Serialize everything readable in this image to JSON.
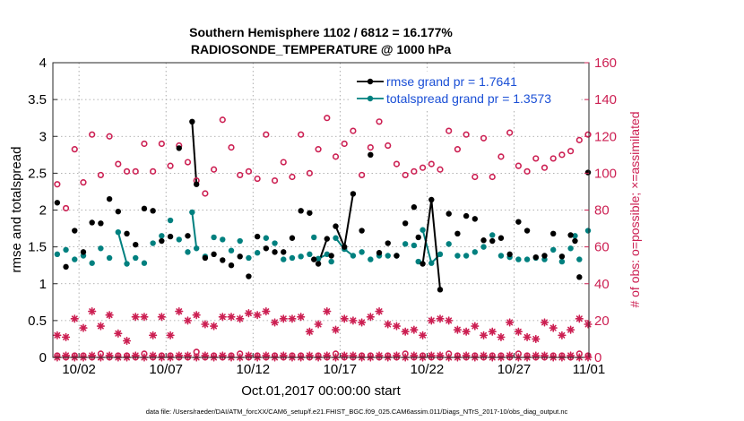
{
  "chart_data": {
    "type": "scatter",
    "title_line1": "Southern Hemisphere 1102 / 6812 = 16.177%",
    "title_line2": "RADIOSONDE_TEMPERATURE @ 1000 hPa",
    "ylabel_left": "rmse and totalspread",
    "ylabel_right": "# of obs: o=possible; ×=assimilated",
    "xlabel": "Oct.01,2017 00:00:00 start",
    "footer": "data file: /Users/raeder/DAI/ATM_forcXX/CAM6_setup/f.e21.FHIST_BGC.f09_025.CAM6assim.011/Diags_NTrS_2017-10/obs_diag_output.nc",
    "xlim": [
      0.5,
      31.3
    ],
    "ylim_left": [
      0,
      4
    ],
    "ylim_right": [
      0,
      160
    ],
    "x_ticks": [
      {
        "x": 2,
        "label": "10/02"
      },
      {
        "x": 7,
        "label": "10/07"
      },
      {
        "x": 12,
        "label": "10/12"
      },
      {
        "x": 17,
        "label": "10/17"
      },
      {
        "x": 22,
        "label": "10/22"
      },
      {
        "x": 27,
        "label": "10/27"
      },
      {
        "x": 32,
        "label": "11/01"
      }
    ],
    "y_ticks_left": [
      "0",
      "0.5",
      "1",
      "1.5",
      "2",
      "2.5",
      "3",
      "3.5",
      "4"
    ],
    "y_ticks_right": [
      "0",
      "20",
      "40",
      "60",
      "80",
      "100",
      "120",
      "140",
      "160"
    ],
    "colors": {
      "rmse": "#000000",
      "totalspread": "#00807f",
      "obs": "#cc1f52",
      "legend_text": "#1a4fd6"
    },
    "legend": [
      {
        "label": "rmse grand pr = 1.7641",
        "series": "rmse"
      },
      {
        "label": "totalspread grand pr = 1.3573",
        "series": "totalspread"
      }
    ],
    "rmse": {
      "x": [
        0.75,
        1.25,
        1.75,
        2.25,
        2.75,
        3.25,
        3.75,
        4.25,
        4.75,
        5.25,
        5.75,
        6.25,
        6.75,
        7.25,
        7.75,
        8.25,
        8.5,
        8.75,
        9.25,
        9.75,
        10.25,
        10.75,
        11.25,
        11.75,
        12.25,
        12.75,
        13.25,
        13.75,
        14.25,
        14.75,
        15.25,
        15.5,
        15.75,
        16.25,
        16.5,
        16.75,
        17.25,
        17.75,
        18.25,
        18.75,
        19.25,
        19.75,
        20.25,
        20.75,
        21.25,
        21.5,
        21.75,
        22.25,
        22.75,
        23.25,
        23.75,
        24.25,
        24.75,
        25.25,
        25.75,
        26.25,
        26.75,
        27.25,
        27.75,
        28.25,
        28.75,
        29.25,
        29.75,
        30.25,
        30.5,
        30.75,
        31.25
      ],
      "y": [
        2.1,
        1.23,
        1.72,
        1.43,
        1.83,
        1.82,
        2.15,
        1.98,
        1.68,
        1.53,
        2.02,
        1.99,
        1.58,
        1.64,
        2.84,
        1.65,
        3.2,
        2.35,
        1.35,
        1.4,
        1.32,
        1.25,
        1.37,
        1.1,
        1.64,
        1.48,
        1.43,
        1.43,
        1.62,
        1.99,
        1.96,
        1.33,
        1.27,
        1.61,
        1.38,
        1.78,
        1.5,
        2.22,
        1.72,
        2.75,
        1.42,
        1.55,
        1.38,
        1.82,
        2.04,
        1.63,
        1.27,
        2.14,
        0.92,
        1.95,
        1.68,
        1.92,
        1.88,
        1.59,
        1.58,
        1.62,
        1.4,
        1.84,
        1.72,
        1.36,
        1.38,
        1.68,
        1.37,
        1.66,
        1.58,
        1.09,
        2.51
      ],
      "segments": [
        [
          16,
          17
        ],
        [
          32,
          33
        ],
        [
          35,
          36,
          37
        ],
        [
          46,
          47,
          48
        ]
      ]
    },
    "totalspread": {
      "x": [
        0.75,
        1.25,
        1.75,
        2.25,
        2.75,
        3.25,
        3.75,
        4.25,
        4.75,
        5.25,
        5.75,
        6.25,
        6.75,
        7.25,
        7.75,
        8.25,
        8.5,
        8.75,
        9.25,
        9.75,
        10.25,
        10.75,
        11.25,
        11.75,
        12.25,
        12.75,
        13.25,
        13.75,
        14.25,
        14.75,
        15.25,
        15.5,
        15.75,
        16.25,
        16.5,
        16.75,
        17.25,
        17.75,
        18.25,
        18.75,
        19.25,
        19.75,
        20.25,
        20.75,
        21.25,
        21.5,
        21.75,
        22.25,
        22.75,
        23.25,
        23.75,
        24.25,
        24.75,
        25.25,
        25.75,
        26.25,
        26.75,
        27.25,
        27.75,
        28.25,
        28.75,
        29.25,
        29.75,
        30.25,
        30.5,
        30.75,
        31.25
      ],
      "y": [
        1.4,
        1.46,
        1.33,
        1.38,
        1.28,
        1.48,
        1.35,
        1.7,
        1.27,
        1.35,
        1.28,
        1.55,
        1.65,
        1.86,
        1.6,
        1.43,
        1.97,
        1.48,
        1.37,
        1.63,
        1.6,
        1.45,
        1.58,
        1.35,
        1.42,
        1.62,
        1.55,
        1.33,
        1.35,
        1.37,
        1.4,
        1.63,
        1.34,
        1.4,
        1.3,
        1.62,
        1.47,
        1.38,
        1.43,
        1.33,
        1.38,
        1.38,
        1.38,
        1.54,
        1.52,
        1.3,
        1.73,
        1.28,
        1.4,
        1.54,
        1.38,
        1.38,
        1.43,
        1.5,
        1.66,
        1.38,
        1.36,
        1.33,
        1.33,
        1.35,
        1.33,
        1.46,
        1.3,
        1.48,
        1.65,
        1.33,
        1.72
      ],
      "segments": [
        [
          7,
          8
        ],
        [
          16,
          17
        ],
        [
          32,
          33
        ],
        [
          35,
          36,
          37
        ],
        [
          46,
          47,
          48
        ]
      ]
    },
    "obs_possible": {
      "x": [
        0.75,
        1.25,
        1.75,
        2.25,
        2.75,
        3.25,
        3.75,
        4.25,
        4.75,
        5.25,
        5.75,
        6.25,
        6.75,
        7.25,
        7.75,
        8.25,
        8.75,
        9.25,
        9.75,
        10.25,
        10.75,
        11.25,
        11.75,
        12.25,
        12.75,
        13.25,
        13.75,
        14.25,
        14.75,
        15.25,
        15.75,
        16.25,
        16.75,
        17.25,
        17.75,
        18.25,
        18.75,
        19.25,
        19.75,
        20.25,
        20.75,
        21.25,
        21.75,
        22.25,
        22.75,
        23.25,
        23.75,
        24.25,
        24.75,
        25.25,
        25.75,
        26.25,
        26.75,
        27.25,
        27.75,
        28.25,
        28.75,
        29.25,
        29.75,
        30.25,
        30.75,
        31.25
      ],
      "y": [
        94,
        81,
        113,
        95,
        121,
        99,
        120,
        105,
        101,
        101,
        116,
        101,
        116,
        104,
        115,
        106,
        96,
        89,
        102,
        129,
        114,
        99,
        101,
        97,
        121,
        96,
        106,
        98,
        121,
        100,
        113,
        130,
        109,
        116,
        123,
        99,
        114,
        128,
        115,
        105,
        99,
        101,
        103,
        105,
        102,
        123,
        113,
        121,
        98,
        119,
        98,
        109,
        122,
        104,
        101,
        108,
        103,
        108,
        110,
        112,
        118,
        121
      ]
    },
    "obs_assimilated": {
      "x": [
        0.75,
        1.25,
        1.75,
        2.25,
        2.75,
        3.25,
        3.75,
        4.25,
        4.75,
        5.25,
        5.75,
        6.25,
        6.75,
        7.25,
        7.75,
        8.25,
        8.75,
        9.25,
        9.75,
        10.25,
        10.75,
        11.25,
        11.75,
        12.25,
        12.75,
        13.25,
        13.75,
        14.25,
        14.75,
        15.25,
        15.75,
        16.25,
        16.75,
        17.25,
        17.75,
        18.25,
        18.75,
        19.25,
        19.75,
        20.25,
        20.75,
        21.25,
        21.75,
        22.25,
        22.75,
        23.25,
        23.75,
        24.25,
        24.75,
        25.25,
        25.75,
        26.25,
        26.75,
        27.25,
        27.75,
        28.25,
        28.75,
        29.25,
        29.75,
        30.25,
        30.75,
        31.25
      ],
      "y": [
        12,
        11,
        21,
        16,
        25,
        17,
        23,
        13,
        9,
        22,
        22,
        12,
        22,
        12,
        25,
        20,
        23,
        18,
        17,
        22,
        22,
        21,
        24,
        23,
        25,
        19,
        21,
        21,
        22,
        14,
        18,
        25,
        15,
        21,
        20,
        19,
        22,
        25,
        18,
        17,
        14,
        15,
        12,
        20,
        21,
        20,
        15,
        14,
        17,
        12,
        14,
        11,
        19,
        14,
        11,
        10,
        19,
        16,
        12,
        15,
        21,
        18
      ]
    },
    "obs_possible_baseline": {
      "x": [
        0.75,
        1.25,
        1.75,
        2.25,
        2.75,
        3.25,
        3.75,
        4.25,
        4.75,
        5.25,
        5.75,
        6.25,
        6.75,
        7.25,
        7.75,
        8.25,
        8.75,
        9.25,
        9.75,
        10.25,
        10.75,
        11.25,
        11.75,
        12.25,
        12.75,
        13.25,
        13.75,
        14.25,
        14.75,
        15.25,
        15.75,
        16.25,
        16.75,
        17.25,
        17.75,
        18.25,
        18.75,
        19.25,
        19.75,
        20.25,
        20.75,
        21.25,
        21.75,
        22.25,
        22.75,
        23.25,
        23.75,
        24.25,
        24.75,
        25.25,
        25.75,
        26.25,
        26.75,
        27.25,
        27.75,
        28.25,
        28.75,
        29.25,
        29.75,
        30.25,
        30.75,
        31.25
      ],
      "y": [
        1,
        0,
        1,
        1,
        0,
        2,
        0,
        1,
        1,
        0,
        2,
        0,
        1,
        1,
        0,
        0,
        3,
        0,
        1,
        0,
        1,
        2,
        0,
        1,
        0,
        1,
        0,
        1,
        1,
        0,
        1,
        0,
        2,
        0,
        0,
        1,
        1,
        0,
        1,
        0,
        2,
        0,
        1,
        0,
        0,
        2,
        1,
        0,
        1,
        0,
        1,
        1,
        0,
        2,
        1,
        0,
        0,
        1,
        1,
        0,
        2,
        1
      ]
    },
    "obs_assimilated_baseline": {
      "x": [
        0.75,
        1.25,
        1.75,
        2.25,
        2.75,
        3.25,
        3.75,
        4.25,
        4.75,
        5.25,
        5.75,
        6.25,
        6.75,
        7.25,
        7.75,
        8.25,
        8.75,
        9.25,
        9.75,
        10.25,
        10.75,
        11.25,
        11.75,
        12.25,
        12.75,
        13.25,
        13.75,
        14.25,
        14.75,
        15.25,
        15.75,
        16.25,
        16.75,
        17.25,
        17.75,
        18.25,
        18.75,
        19.25,
        19.75,
        20.25,
        20.75,
        21.25,
        21.75,
        22.25,
        22.75,
        23.25,
        23.75,
        24.25,
        24.75,
        25.25,
        25.75,
        26.25,
        26.75,
        27.25,
        27.75,
        28.25,
        28.75,
        29.25,
        29.75,
        30.25,
        30.75,
        31.25
      ],
      "y": [
        0,
        1,
        0,
        0,
        1,
        0,
        1,
        0,
        0,
        1,
        0,
        1,
        0,
        0,
        1,
        1,
        0,
        1,
        0,
        1,
        0,
        0,
        1,
        0,
        1,
        0,
        1,
        0,
        0,
        1,
        0,
        1,
        0,
        1,
        1,
        0,
        0,
        1,
        0,
        1,
        0,
        1,
        0,
        1,
        1,
        0,
        0,
        1,
        0,
        1,
        0,
        0,
        1,
        0,
        0,
        1,
        1,
        0,
        0,
        1,
        0,
        0
      ]
    }
  }
}
